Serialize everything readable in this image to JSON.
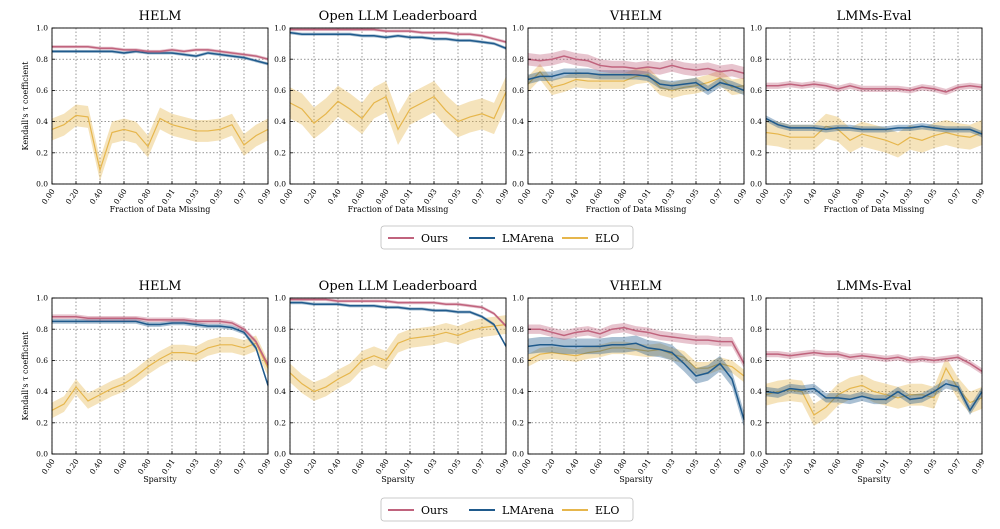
{
  "colors": {
    "Ours": "#c0637d",
    "LMArena": "#1f5a8c",
    "ELO": "#e6b64c"
  },
  "legend_labels": [
    "Ours",
    "LMArena",
    "ELO"
  ],
  "chart_data": [
    {
      "row": 1,
      "type": "line",
      "ylabel": "Kendall's τ coefficient",
      "xlabel": "Fraction of Data Missing",
      "x": [
        "0.00",
        "0.20",
        "0.40",
        "0.60",
        "0.80",
        "0.91",
        "0.93",
        "0.95",
        "0.97",
        "0.99"
      ],
      "ylim": [
        0,
        1.0
      ],
      "yticks": [
        "0.0",
        "0.2",
        "0.4",
        "0.6",
        "0.8",
        "1.0"
      ],
      "panels": [
        {
          "title": "HELM",
          "series": {
            "Ours": {
              "mean": [
                0.88,
                0.88,
                0.88,
                0.88,
                0.87,
                0.87,
                0.86,
                0.86,
                0.85,
                0.85,
                0.86,
                0.85,
                0.86,
                0.86,
                0.85,
                0.84,
                0.83,
                0.82,
                0.8
              ],
              "band": 0.01
            },
            "LMArena": {
              "mean": [
                0.85,
                0.85,
                0.85,
                0.85,
                0.85,
                0.85,
                0.84,
                0.85,
                0.84,
                0.84,
                0.84,
                0.83,
                0.82,
                0.84,
                0.83,
                0.82,
                0.81,
                0.79,
                0.77
              ],
              "band": 0.01
            },
            "ELO": {
              "mean": [
                0.35,
                0.38,
                0.44,
                0.43,
                0.09,
                0.33,
                0.35,
                0.33,
                0.24,
                0.42,
                0.38,
                0.36,
                0.34,
                0.34,
                0.35,
                0.38,
                0.25,
                0.31,
                0.35
              ],
              "band": 0.07
            }
          }
        },
        {
          "title": "Open LLM Leaderboard",
          "series": {
            "Ours": {
              "mean": [
                0.99,
                0.99,
                0.99,
                0.99,
                0.99,
                0.99,
                0.99,
                0.99,
                0.98,
                0.98,
                0.98,
                0.97,
                0.97,
                0.97,
                0.96,
                0.96,
                0.95,
                0.93,
                0.91
              ],
              "band": 0.01
            },
            "LMArena": {
              "mean": [
                0.97,
                0.96,
                0.96,
                0.96,
                0.96,
                0.96,
                0.95,
                0.95,
                0.94,
                0.95,
                0.94,
                0.94,
                0.93,
                0.93,
                0.92,
                0.92,
                0.91,
                0.9,
                0.87
              ],
              "band": 0.01
            },
            "ELO": {
              "mean": [
                0.52,
                0.48,
                0.39,
                0.45,
                0.53,
                0.48,
                0.42,
                0.52,
                0.56,
                0.35,
                0.48,
                0.52,
                0.56,
                0.47,
                0.4,
                0.43,
                0.45,
                0.42,
                0.59
              ],
              "band": 0.1
            }
          }
        },
        {
          "title": "VHELM",
          "series": {
            "Ours": {
              "mean": [
                0.8,
                0.79,
                0.8,
                0.82,
                0.8,
                0.79,
                0.76,
                0.75,
                0.75,
                0.74,
                0.75,
                0.74,
                0.76,
                0.74,
                0.73,
                0.74,
                0.72,
                0.73,
                0.71
              ],
              "band": 0.04
            },
            "LMArena": {
              "mean": [
                0.67,
                0.69,
                0.69,
                0.71,
                0.71,
                0.71,
                0.7,
                0.7,
                0.7,
                0.7,
                0.69,
                0.64,
                0.63,
                0.64,
                0.65,
                0.6,
                0.65,
                0.63,
                0.6
              ],
              "band": 0.03
            },
            "ELO": {
              "mean": [
                0.64,
                0.72,
                0.62,
                0.64,
                0.67,
                0.66,
                0.66,
                0.66,
                0.66,
                0.69,
                0.7,
                0.62,
                0.6,
                0.62,
                0.63,
                0.65,
                0.68,
                0.62,
                0.63
              ],
              "band": 0.05
            }
          }
        },
        {
          "title": "LMMs-Eval",
          "series": {
            "Ours": {
              "mean": [
                0.63,
                0.63,
                0.64,
                0.63,
                0.64,
                0.63,
                0.61,
                0.63,
                0.61,
                0.61,
                0.61,
                0.61,
                0.6,
                0.62,
                0.61,
                0.59,
                0.62,
                0.63,
                0.62
              ],
              "band": 0.02
            },
            "LMArena": {
              "mean": [
                0.42,
                0.38,
                0.36,
                0.36,
                0.36,
                0.35,
                0.36,
                0.36,
                0.35,
                0.35,
                0.35,
                0.36,
                0.36,
                0.37,
                0.36,
                0.35,
                0.35,
                0.35,
                0.32
              ],
              "band": 0.02
            },
            "ELO": {
              "mean": [
                0.33,
                0.32,
                0.3,
                0.3,
                0.3,
                0.37,
                0.35,
                0.28,
                0.32,
                0.3,
                0.28,
                0.25,
                0.3,
                0.28,
                0.31,
                0.33,
                0.31,
                0.3,
                0.33
              ],
              "band": 0.08
            }
          }
        }
      ]
    },
    {
      "row": 2,
      "type": "line",
      "ylabel": "Kendall's τ coefficient",
      "xlabel": "Sparsity",
      "x": [
        "0.00",
        "0.20",
        "0.40",
        "0.60",
        "0.80",
        "0.91",
        "0.93",
        "0.95",
        "0.97",
        "0.99"
      ],
      "ylim": [
        0,
        1.0
      ],
      "yticks": [
        "0.0",
        "0.2",
        "0.4",
        "0.6",
        "0.8",
        "1.0"
      ],
      "panels": [
        {
          "title": "HELM",
          "series": {
            "Ours": {
              "mean": [
                0.88,
                0.88,
                0.88,
                0.87,
                0.87,
                0.87,
                0.87,
                0.87,
                0.86,
                0.86,
                0.86,
                0.86,
                0.85,
                0.85,
                0.85,
                0.84,
                0.8,
                0.72,
                0.57
              ],
              "band": 0.015
            },
            "LMArena": {
              "mean": [
                0.85,
                0.85,
                0.85,
                0.85,
                0.85,
                0.85,
                0.85,
                0.85,
                0.83,
                0.83,
                0.84,
                0.84,
                0.83,
                0.82,
                0.82,
                0.81,
                0.78,
                0.68,
                0.44
              ],
              "band": 0.015
            },
            "ELO": {
              "mean": [
                0.28,
                0.32,
                0.43,
                0.34,
                0.38,
                0.42,
                0.45,
                0.5,
                0.56,
                0.61,
                0.65,
                0.65,
                0.64,
                0.68,
                0.7,
                0.7,
                0.68,
                0.71,
                0.55
              ],
              "band": 0.05
            }
          }
        },
        {
          "title": "Open LLM Leaderboard",
          "series": {
            "Ours": {
              "mean": [
                0.99,
                0.99,
                0.99,
                0.99,
                0.98,
                0.98,
                0.98,
                0.98,
                0.98,
                0.97,
                0.97,
                0.97,
                0.97,
                0.96,
                0.96,
                0.95,
                0.94,
                0.9,
                0.82
              ],
              "band": 0.01
            },
            "LMArena": {
              "mean": [
                0.97,
                0.97,
                0.96,
                0.96,
                0.96,
                0.95,
                0.95,
                0.95,
                0.94,
                0.94,
                0.93,
                0.93,
                0.92,
                0.92,
                0.91,
                0.91,
                0.88,
                0.83,
                0.69
              ],
              "band": 0.01
            },
            "ELO": {
              "mean": [
                0.52,
                0.45,
                0.4,
                0.43,
                0.48,
                0.52,
                0.6,
                0.63,
                0.6,
                0.71,
                0.74,
                0.75,
                0.76,
                0.78,
                0.76,
                0.79,
                0.81,
                0.82,
                0.83
              ],
              "band": 0.06
            }
          }
        },
        {
          "title": "VHELM",
          "series": {
            "Ours": {
              "mean": [
                0.8,
                0.8,
                0.78,
                0.76,
                0.78,
                0.79,
                0.77,
                0.8,
                0.81,
                0.79,
                0.78,
                0.76,
                0.75,
                0.74,
                0.73,
                0.73,
                0.72,
                0.72,
                0.58
              ],
              "band": 0.03
            },
            "LMArena": {
              "mean": [
                0.69,
                0.7,
                0.7,
                0.69,
                0.69,
                0.69,
                0.69,
                0.7,
                0.7,
                0.71,
                0.68,
                0.67,
                0.65,
                0.58,
                0.5,
                0.52,
                0.58,
                0.48,
                0.22
              ],
              "band": 0.05
            },
            "ELO": {
              "mean": [
                0.6,
                0.64,
                0.65,
                0.64,
                0.63,
                0.65,
                0.66,
                0.68,
                0.68,
                0.67,
                0.66,
                0.67,
                0.64,
                0.62,
                0.55,
                0.55,
                0.58,
                0.56,
                0.5
              ],
              "band": 0.04
            }
          }
        },
        {
          "title": "LMMs-Eval",
          "series": {
            "Ours": {
              "mean": [
                0.64,
                0.64,
                0.63,
                0.64,
                0.65,
                0.64,
                0.64,
                0.62,
                0.63,
                0.62,
                0.61,
                0.62,
                0.6,
                0.61,
                0.6,
                0.61,
                0.62,
                0.58,
                0.53
              ],
              "band": 0.02
            },
            "LMArena": {
              "mean": [
                0.4,
                0.39,
                0.42,
                0.41,
                0.42,
                0.36,
                0.36,
                0.35,
                0.37,
                0.35,
                0.35,
                0.4,
                0.35,
                0.36,
                0.4,
                0.45,
                0.43,
                0.28,
                0.4
              ],
              "band": 0.03
            },
            "ELO": {
              "mean": [
                0.38,
                0.4,
                0.41,
                0.4,
                0.25,
                0.3,
                0.38,
                0.42,
                0.44,
                0.4,
                0.38,
                0.36,
                0.38,
                0.38,
                0.36,
                0.55,
                0.42,
                0.33,
                0.36
              ],
              "band": 0.07
            }
          }
        }
      ]
    }
  ]
}
